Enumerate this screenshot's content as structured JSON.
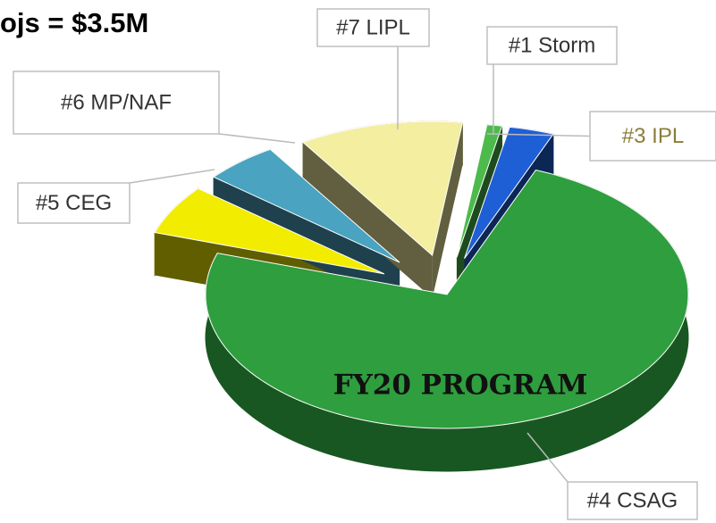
{
  "chart_data": {
    "type": "pie3d",
    "title": "ojs = $3.5M",
    "annotation": "FY20 PROGRAM",
    "categories": [
      "#1 Storm",
      "#3 IPL",
      "#4 CSAG",
      "#5 CEG",
      "#6 MP/NAF",
      "#7 LIPL"
    ],
    "values": [
      1,
      3,
      74,
      6,
      5,
      11
    ],
    "colors": [
      "#4cbb4c",
      "#1f5fd6",
      "#2e9e3e",
      "#f2ec00",
      "#4aa3c0",
      "#f3eea0"
    ],
    "label_colors": [
      "#333333",
      "#8b7d3a",
      "#333333",
      "#333333",
      "#333333",
      "#333333"
    ]
  }
}
